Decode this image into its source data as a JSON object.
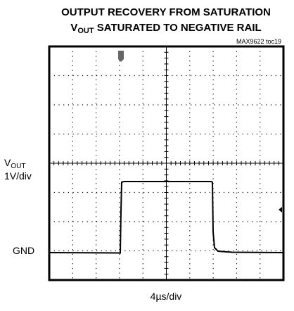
{
  "title": {
    "line1": "OUTPUT RECOVERY FROM SATURATION",
    "line2_prefix": "V",
    "line2_sub": "OUT",
    "line2_rest": " SATURATED TO NEGATIVE RAIL"
  },
  "figure_id": "MAX9622 toc19",
  "y_label": {
    "prefix": "V",
    "sub": "OUT",
    "scale": "1V/div"
  },
  "ground_label": "GND",
  "x_label": "4µs/div"
}
